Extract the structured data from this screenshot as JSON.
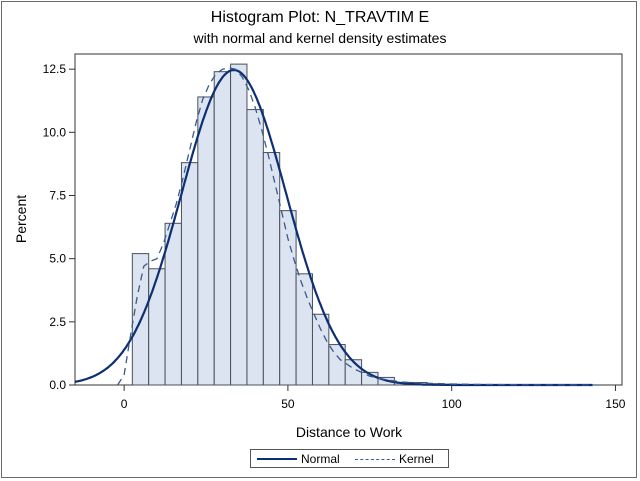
{
  "chart_data": {
    "type": "bar",
    "title": "Histogram Plot: N_TRAVTIM E",
    "subtitle": "with normal and kernel density estimates",
    "xlabel": "Distance to Work",
    "ylabel": "Percent",
    "xlim": [
      -15,
      152
    ],
    "ylim": [
      0,
      13.1
    ],
    "x_ticks": [
      0,
      50,
      100,
      150
    ],
    "y_ticks": [
      0.0,
      2.5,
      5.0,
      7.5,
      10.0,
      12.5
    ],
    "y_tick_labels": [
      "0.0",
      "2.5",
      "5.0",
      "7.5",
      "10.0",
      "12.5"
    ],
    "bin_width": 5,
    "bins": [
      {
        "start": 2.5,
        "value": 5.2
      },
      {
        "start": 7.5,
        "value": 4.6
      },
      {
        "start": 12.5,
        "value": 6.4
      },
      {
        "start": 17.5,
        "value": 8.8
      },
      {
        "start": 22.5,
        "value": 11.4
      },
      {
        "start": 27.5,
        "value": 12.4
      },
      {
        "start": 32.5,
        "value": 12.7
      },
      {
        "start": 37.5,
        "value": 10.9
      },
      {
        "start": 42.5,
        "value": 9.2
      },
      {
        "start": 47.5,
        "value": 6.9
      },
      {
        "start": 52.5,
        "value": 4.4
      },
      {
        "start": 57.5,
        "value": 2.8
      },
      {
        "start": 62.5,
        "value": 1.6
      },
      {
        "start": 67.5,
        "value": 1.0
      },
      {
        "start": 72.5,
        "value": 0.5
      },
      {
        "start": 77.5,
        "value": 0.3
      },
      {
        "start": 82.5,
        "value": 0.1
      },
      {
        "start": 87.5,
        "value": 0.1
      },
      {
        "start": 92.5,
        "value": 0.05
      },
      {
        "start": 97.5,
        "value": 0.03
      },
      {
        "start": 102.5,
        "value": 0.02
      },
      {
        "start": 107.5,
        "value": 0.02
      },
      {
        "start": 112.5,
        "value": 0.01
      },
      {
        "start": 117.5,
        "value": 0.01
      },
      {
        "start": 122.5,
        "value": 0.01
      },
      {
        "start": 127.5,
        "value": 0.01
      },
      {
        "start": 132.5,
        "value": 0.01
      },
      {
        "start": 137.5,
        "value": 0.01
      }
    ],
    "normal": {
      "name": "Normal",
      "mean": 33.5,
      "sd": 16.0
    },
    "kernel": {
      "name": "Kernel",
      "points": [
        [
          -2,
          0
        ],
        [
          0,
          0.4
        ],
        [
          2,
          2
        ],
        [
          4,
          3.5
        ],
        [
          6,
          4.7
        ],
        [
          8,
          4.9
        ],
        [
          10,
          5.0
        ],
        [
          12,
          5.6
        ],
        [
          14,
          6.4
        ],
        [
          16,
          7.2
        ],
        [
          18,
          8.2
        ],
        [
          20,
          9.3
        ],
        [
          22,
          10.4
        ],
        [
          24,
          11.3
        ],
        [
          26,
          11.9
        ],
        [
          28,
          12.3
        ],
        [
          30,
          12.5
        ],
        [
          32,
          12.55
        ],
        [
          34,
          12.5
        ],
        [
          36,
          12.2
        ],
        [
          38,
          11.7
        ],
        [
          40,
          11.0
        ],
        [
          42,
          10.1
        ],
        [
          44,
          9.1
        ],
        [
          46,
          8.0
        ],
        [
          48,
          6.9
        ],
        [
          50,
          5.8
        ],
        [
          52,
          4.9
        ],
        [
          54,
          4.1
        ],
        [
          56,
          3.4
        ],
        [
          58,
          2.8
        ],
        [
          60,
          2.2
        ],
        [
          62,
          1.7
        ],
        [
          64,
          1.3
        ],
        [
          66,
          1.0
        ],
        [
          70,
          0.65
        ],
        [
          75,
          0.35
        ],
        [
          80,
          0.2
        ],
        [
          85,
          0.12
        ],
        [
          90,
          0.08
        ],
        [
          100,
          0.04
        ],
        [
          110,
          0.02
        ],
        [
          120,
          0.01
        ],
        [
          130,
          0.005
        ],
        [
          145,
          0
        ]
      ]
    },
    "legend_position": "bottom-center",
    "colors": {
      "bar_fill": "#dbe4f0",
      "bar_stroke": "#4a4f5c",
      "normal": "#0d2f73",
      "kernel": "#3a5a8c"
    }
  }
}
